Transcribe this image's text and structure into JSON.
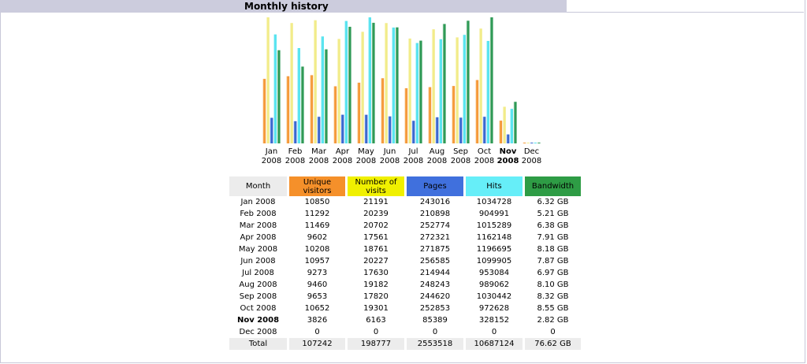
{
  "title": "Monthly history",
  "colors": {
    "unique": "#f59a3a",
    "visits": "#f2ec8a",
    "pages": "#3a68d0",
    "hits": "#5ae4f0",
    "bandwidth": "#2f9a56",
    "month_header": "#ececec",
    "visits_header": "#f0f000",
    "pages_header": "#4070dd",
    "hits_header": "#66eef8",
    "bandwidth_header": "#2e9c45",
    "unique_header": "#f5902a"
  },
  "table": {
    "headers": {
      "month": "Month",
      "unique_line1": "Unique",
      "unique_line2": "visitors",
      "visits_line1": "Number of",
      "visits_line2": "visits",
      "pages": "Pages",
      "hits": "Hits",
      "bandwidth": "Bandwidth"
    },
    "rows": [
      {
        "month": "Jan 2008",
        "unique": "10850",
        "visits": "21191",
        "pages": "243016",
        "hits": "1034728",
        "bandwidth": "6.32 GB",
        "current": false
      },
      {
        "month": "Feb 2008",
        "unique": "11292",
        "visits": "20239",
        "pages": "210898",
        "hits": "904991",
        "bandwidth": "5.21 GB",
        "current": false
      },
      {
        "month": "Mar 2008",
        "unique": "11469",
        "visits": "20702",
        "pages": "252774",
        "hits": "1015289",
        "bandwidth": "6.38 GB",
        "current": false
      },
      {
        "month": "Apr 2008",
        "unique": "9602",
        "visits": "17561",
        "pages": "272321",
        "hits": "1162148",
        "bandwidth": "7.91 GB",
        "current": false
      },
      {
        "month": "May 2008",
        "unique": "10208",
        "visits": "18761",
        "pages": "271875",
        "hits": "1196695",
        "bandwidth": "8.18 GB",
        "current": false
      },
      {
        "month": "Jun 2008",
        "unique": "10957",
        "visits": "20227",
        "pages": "256585",
        "hits": "1099905",
        "bandwidth": "7.87 GB",
        "current": false
      },
      {
        "month": "Jul 2008",
        "unique": "9273",
        "visits": "17630",
        "pages": "214944",
        "hits": "953084",
        "bandwidth": "6.97 GB",
        "current": false
      },
      {
        "month": "Aug 2008",
        "unique": "9460",
        "visits": "19182",
        "pages": "248243",
        "hits": "989062",
        "bandwidth": "8.10 GB",
        "current": false
      },
      {
        "month": "Sep 2008",
        "unique": "9653",
        "visits": "17820",
        "pages": "244620",
        "hits": "1030442",
        "bandwidth": "8.32 GB",
        "current": false
      },
      {
        "month": "Oct 2008",
        "unique": "10652",
        "visits": "19301",
        "pages": "252853",
        "hits": "972628",
        "bandwidth": "8.55 GB",
        "current": false
      },
      {
        "month": "Nov 2008",
        "unique": "3826",
        "visits": "6163",
        "pages": "85389",
        "hits": "328152",
        "bandwidth": "2.82 GB",
        "current": true
      },
      {
        "month": "Dec 2008",
        "unique": "0",
        "visits": "0",
        "pages": "0",
        "hits": "0",
        "bandwidth": "0",
        "current": false
      }
    ],
    "total": {
      "month": "Total",
      "unique": "107242",
      "visits": "198777",
      "pages": "2553518",
      "hits": "10687124",
      "bandwidth": "76.62 GB"
    }
  },
  "chart_data": {
    "type": "bar",
    "categories": [
      {
        "month": "Jan",
        "year": "2008"
      },
      {
        "month": "Feb",
        "year": "2008"
      },
      {
        "month": "Mar",
        "year": "2008"
      },
      {
        "month": "Apr",
        "year": "2008"
      },
      {
        "month": "May",
        "year": "2008"
      },
      {
        "month": "Jun",
        "year": "2008"
      },
      {
        "month": "Jul",
        "year": "2008"
      },
      {
        "month": "Aug",
        "year": "2008"
      },
      {
        "month": "Sep",
        "year": "2008"
      },
      {
        "month": "Oct",
        "year": "2008"
      },
      {
        "month": "Nov",
        "year": "2008"
      },
      {
        "month": "Dec",
        "year": "2008"
      }
    ],
    "highlight_category": 10,
    "series": [
      {
        "key": "unique",
        "values": [
          10850,
          11292,
          11469,
          9602,
          10208,
          10957,
          9273,
          9460,
          9653,
          10652,
          3826,
          0
        ],
        "scale_group": "visits"
      },
      {
        "key": "visits",
        "values": [
          21191,
          20239,
          20702,
          17561,
          18761,
          20227,
          17630,
          19182,
          17820,
          19301,
          6163,
          0
        ],
        "scale_group": "visits"
      },
      {
        "key": "pages",
        "values": [
          243016,
          210898,
          252774,
          272321,
          271875,
          256585,
          214944,
          248243,
          244620,
          252853,
          85389,
          0
        ],
        "scale_group": "hits"
      },
      {
        "key": "hits",
        "values": [
          1034728,
          904991,
          1015289,
          1162148,
          1196695,
          1099905,
          953084,
          989062,
          1030442,
          972628,
          328152,
          0
        ],
        "scale_group": "hits"
      },
      {
        "key": "bandwidth",
        "values": [
          6.32,
          5.21,
          6.38,
          7.91,
          8.18,
          7.87,
          6.97,
          8.1,
          8.32,
          8.55,
          2.82,
          0
        ],
        "scale_group": "bandwidth"
      }
    ],
    "title": "",
    "xlabel": "",
    "ylabel": "",
    "grid": false,
    "legend": "none"
  }
}
